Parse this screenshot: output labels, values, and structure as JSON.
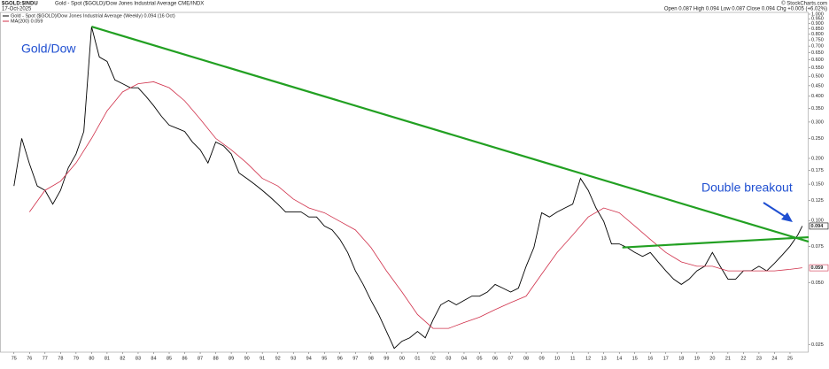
{
  "header": {
    "symbol": "$GOLD:$INDU",
    "description": "Gold - Spot ($GOLD)/Dow Jones Industrial Average  CME/INDX",
    "date": "17-Oct-2025",
    "quote": "Open 0.087 High 0.094 Low 0.087 Close 0.094 Chg +0.005 (+6.02%)",
    "credit": "© StockCharts.com"
  },
  "chart_data": {
    "type": "line",
    "log_scale": true,
    "xlim": [
      1974.1,
      2026.2
    ],
    "ylim": [
      0.023,
      1.02
    ],
    "xticks": [
      {
        "value": 1975,
        "label": "75"
      },
      {
        "value": 1976,
        "label": "76"
      },
      {
        "value": 1977,
        "label": "77"
      },
      {
        "value": 1978,
        "label": "78"
      },
      {
        "value": 1979,
        "label": "79"
      },
      {
        "value": 1980,
        "label": "80"
      },
      {
        "value": 1981,
        "label": "81"
      },
      {
        "value": 1982,
        "label": "82"
      },
      {
        "value": 1983,
        "label": "83"
      },
      {
        "value": 1984,
        "label": "84"
      },
      {
        "value": 1985,
        "label": "85"
      },
      {
        "value": 1986,
        "label": "86"
      },
      {
        "value": 1987,
        "label": "87"
      },
      {
        "value": 1988,
        "label": "88"
      },
      {
        "value": 1989,
        "label": "89"
      },
      {
        "value": 1990,
        "label": "90"
      },
      {
        "value": 1991,
        "label": "91"
      },
      {
        "value": 1992,
        "label": "92"
      },
      {
        "value": 1993,
        "label": "93"
      },
      {
        "value": 1994,
        "label": "94"
      },
      {
        "value": 1995,
        "label": "95"
      },
      {
        "value": 1996,
        "label": "96"
      },
      {
        "value": 1997,
        "label": "97"
      },
      {
        "value": 1998,
        "label": "98"
      },
      {
        "value": 1999,
        "label": "99"
      },
      {
        "value": 2000,
        "label": "00"
      },
      {
        "value": 2001,
        "label": "01"
      },
      {
        "value": 2002,
        "label": "02"
      },
      {
        "value": 2003,
        "label": "03"
      },
      {
        "value": 2004,
        "label": "04"
      },
      {
        "value": 2005,
        "label": "05"
      },
      {
        "value": 2006,
        "label": "06"
      },
      {
        "value": 2007,
        "label": "07"
      },
      {
        "value": 2008,
        "label": "08"
      },
      {
        "value": 2009,
        "label": "09"
      },
      {
        "value": 2010,
        "label": "10"
      },
      {
        "value": 2011,
        "label": "11"
      },
      {
        "value": 2012,
        "label": "12"
      },
      {
        "value": 2013,
        "label": "13"
      },
      {
        "value": 2014,
        "label": "14"
      },
      {
        "value": 2015,
        "label": "15"
      },
      {
        "value": 2016,
        "label": "16"
      },
      {
        "value": 2017,
        "label": "17"
      },
      {
        "value": 2018,
        "label": "18"
      },
      {
        "value": 2019,
        "label": "19"
      },
      {
        "value": 2020,
        "label": "20"
      },
      {
        "value": 2021,
        "label": "21"
      },
      {
        "value": 2022,
        "label": "22"
      },
      {
        "value": 2023,
        "label": "23"
      },
      {
        "value": 2024,
        "label": "24"
      },
      {
        "value": 2025,
        "label": "25"
      }
    ],
    "yticks": [
      0.025,
      {
        "value": 0.05,
        "label": "0.050"
      },
      0.075,
      {
        "value": 0.1,
        "label": "0.100"
      },
      0.125,
      {
        "value": 0.15,
        "label": "0.150"
      },
      0.175,
      {
        "value": 0.2,
        "label": "0.200"
      },
      {
        "value": 0.25,
        "label": "0.250"
      },
      {
        "value": 0.3,
        "label": "0.300"
      },
      {
        "value": 0.35,
        "label": "0.350"
      },
      {
        "value": 0.4,
        "label": "0.400"
      },
      {
        "value": 0.45,
        "label": "0.450"
      },
      {
        "value": 0.5,
        "label": "0.500"
      },
      {
        "value": 0.55,
        "label": "0.550"
      },
      {
        "value": 0.6,
        "label": "0.600"
      },
      {
        "value": 0.65,
        "label": "0.650"
      },
      {
        "value": 0.7,
        "label": "0.700"
      },
      {
        "value": 0.75,
        "label": "0.750"
      },
      {
        "value": 0.8,
        "label": "0.800"
      },
      {
        "value": 0.85,
        "label": "0.850"
      },
      {
        "value": 0.9,
        "label": "0.900"
      },
      {
        "value": 0.95,
        "label": "0.950"
      },
      {
        "value": 1,
        "label": "1.000"
      }
    ],
    "series": [
      {
        "name": "Gold - Spot ($GOLD)/Dow Jones Industrial Average (Weekly) 0.094 (16 Oct)",
        "color": "#000000",
        "x": [
          1975,
          1975.5,
          1976,
          1976.5,
          1977,
          1977.5,
          1978,
          1978.5,
          1979,
          1979.5,
          1980,
          1980.5,
          1981,
          1981.5,
          1982,
          1982.5,
          1983,
          1983.5,
          1984,
          1984.5,
          1985,
          1985.5,
          1986,
          1986.5,
          1987,
          1987.5,
          1988,
          1988.5,
          1989,
          1989.5,
          1990,
          1990.5,
          1991,
          1991.5,
          1992,
          1992.5,
          1993,
          1993.5,
          1994,
          1994.5,
          1995,
          1995.5,
          1996,
          1996.5,
          1997,
          1997.5,
          1998,
          1998.5,
          1999,
          1999.5,
          2000,
          2000.5,
          2001,
          2001.5,
          2002,
          2002.5,
          2003,
          2003.5,
          2004,
          2004.5,
          2005,
          2005.5,
          2006,
          2006.5,
          2007,
          2007.5,
          2008,
          2008.5,
          2009,
          2009.5,
          2010,
          2010.5,
          2011,
          2011.5,
          2012,
          2012.5,
          2013,
          2013.5,
          2014,
          2014.5,
          2015,
          2015.5,
          2016,
          2016.5,
          2017,
          2017.5,
          2018,
          2018.5,
          2019,
          2019.5,
          2020,
          2020.5,
          2021,
          2021.5,
          2022,
          2022.5,
          2023,
          2023.5,
          2024,
          2024.5,
          2025,
          2025.5,
          2025.79
        ],
        "values": [
          0.147,
          0.25,
          0.188,
          0.147,
          0.14,
          0.12,
          0.14,
          0.18,
          0.21,
          0.27,
          0.87,
          0.62,
          0.59,
          0.48,
          0.46,
          0.44,
          0.44,
          0.4,
          0.36,
          0.32,
          0.29,
          0.28,
          0.27,
          0.24,
          0.22,
          0.19,
          0.24,
          0.23,
          0.21,
          0.17,
          0.16,
          0.15,
          0.14,
          0.13,
          0.12,
          0.11,
          0.11,
          0.11,
          0.104,
          0.104,
          0.094,
          0.09,
          0.081,
          0.07,
          0.057,
          0.049,
          0.041,
          0.035,
          0.029,
          0.024,
          0.026,
          0.027,
          0.029,
          0.027,
          0.033,
          0.039,
          0.041,
          0.039,
          0.041,
          0.043,
          0.043,
          0.045,
          0.049,
          0.047,
          0.045,
          0.047,
          0.06,
          0.074,
          0.109,
          0.104,
          0.11,
          0.115,
          0.12,
          0.16,
          0.14,
          0.115,
          0.099,
          0.077,
          0.077,
          0.074,
          0.07,
          0.067,
          0.07,
          0.063,
          0.057,
          0.052,
          0.049,
          0.052,
          0.057,
          0.06,
          0.07,
          0.06,
          0.052,
          0.052,
          0.057,
          0.057,
          0.06,
          0.057,
          0.062,
          0.068,
          0.075,
          0.085,
          0.094
        ]
      },
      {
        "name": "MA(200) 0.059",
        "color": "#d0304a",
        "x": [
          1976,
          1977,
          1978,
          1979,
          1980,
          1981,
          1982,
          1983,
          1984,
          1985,
          1986,
          1987,
          1988,
          1989,
          1990,
          1991,
          1992,
          1993,
          1994,
          1995,
          1996,
          1997,
          1998,
          1999,
          2000,
          2001,
          2002,
          2003,
          2004,
          2005,
          2006,
          2007,
          2008,
          2009,
          2010,
          2011,
          2012,
          2013,
          2014,
          2015,
          2016,
          2017,
          2018,
          2019,
          2020,
          2021,
          2022,
          2023,
          2024,
          2025,
          2025.79
        ],
        "values": [
          0.11,
          0.14,
          0.155,
          0.19,
          0.25,
          0.34,
          0.42,
          0.46,
          0.47,
          0.44,
          0.38,
          0.31,
          0.25,
          0.22,
          0.19,
          0.16,
          0.147,
          0.127,
          0.115,
          0.109,
          0.099,
          0.09,
          0.074,
          0.057,
          0.045,
          0.035,
          0.03,
          0.03,
          0.032,
          0.034,
          0.037,
          0.04,
          0.043,
          0.055,
          0.07,
          0.085,
          0.104,
          0.115,
          0.109,
          0.094,
          0.081,
          0.07,
          0.063,
          0.06,
          0.06,
          0.057,
          0.057,
          0.057,
          0.057,
          0.058,
          0.059
        ]
      }
    ],
    "trendlines": [
      {
        "color": "#22a022",
        "x": [
          1980.0,
          2026.2
        ],
        "values": [
          0.87,
          0.079
        ]
      },
      {
        "color": "#22a022",
        "x": [
          2014.2,
          2026.2
        ],
        "values": [
          0.074,
          0.083
        ]
      }
    ],
    "annotations": [
      {
        "text": "Gold/Dow"
      },
      {
        "text": "Double breakout"
      }
    ]
  }
}
